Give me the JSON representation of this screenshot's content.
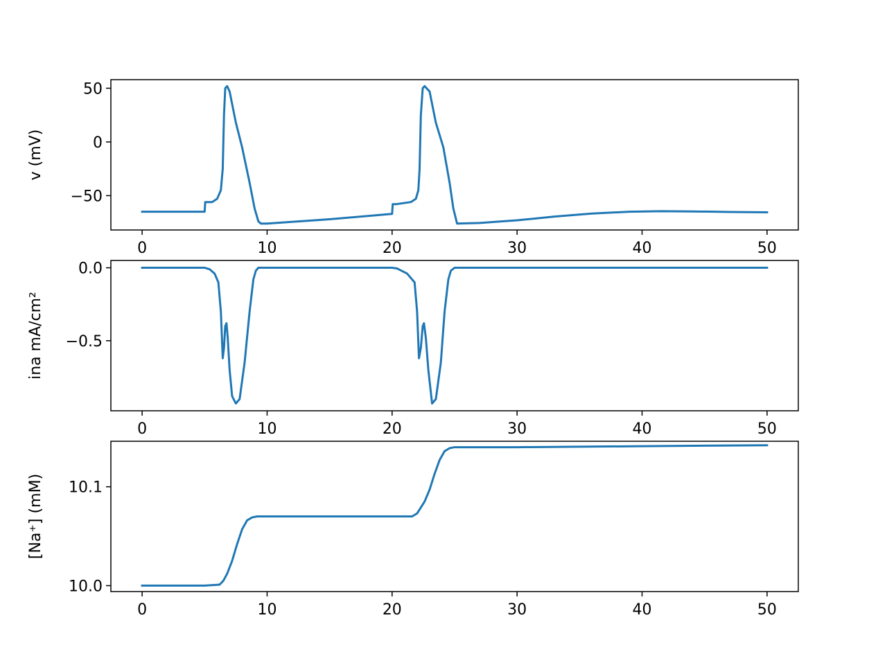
{
  "chart_data": [
    {
      "type": "line",
      "ylabel": "v (mV)",
      "xlim": [
        -2.5,
        52.5
      ],
      "ylim": [
        -82,
        58
      ],
      "xticks": [
        0,
        10,
        20,
        30,
        40,
        50
      ],
      "xtick_labels": [
        "0",
        "10",
        "20",
        "30",
        "40",
        "50"
      ],
      "yticks": [
        -50,
        0,
        50
      ],
      "ytick_labels": [
        "−50",
        "0",
        "50"
      ],
      "grid": false,
      "series_color": "#1f77b4",
      "x": [
        0,
        5,
        5.05,
        5.6,
        6.0,
        6.3,
        6.45,
        6.55,
        6.65,
        6.8,
        7.0,
        7.5,
        8.0,
        8.6,
        9.0,
        9.3,
        9.5,
        10,
        15,
        20,
        20.05,
        20.3,
        21.5,
        21.9,
        22.1,
        22.2,
        22.3,
        22.45,
        22.6,
        23.0,
        23.5,
        24.1,
        24.6,
        24.9,
        25.2,
        27,
        30,
        33,
        36,
        39,
        41.5,
        44,
        47,
        50
      ],
      "y": [
        -65,
        -65,
        -56,
        -56,
        -53,
        -45,
        -25,
        25,
        50,
        52,
        47,
        18,
        -5,
        -38,
        -62,
        -74,
        -76,
        -76,
        -72,
        -67,
        -58,
        -58,
        -56,
        -53,
        -45,
        -25,
        25,
        50,
        52,
        47,
        18,
        -5,
        -38,
        -62,
        -76,
        -75.5,
        -73,
        -69.5,
        -66.7,
        -65,
        -64.5,
        -64.7,
        -65.2,
        -65.5
      ]
    },
    {
      "type": "line",
      "ylabel": "ina mA/cm²",
      "xlim": [
        -2.5,
        52.5
      ],
      "ylim": [
        -0.98,
        0.05
      ],
      "xticks": [
        0,
        10,
        20,
        30,
        40,
        50
      ],
      "xtick_labels": [
        "0",
        "10",
        "20",
        "30",
        "40",
        "50"
      ],
      "yticks": [
        -0.5,
        0.0
      ],
      "ytick_labels": [
        "−0.5",
        "0.0"
      ],
      "grid": false,
      "series_color": "#1f77b4",
      "x": [
        0,
        5,
        5.4,
        5.8,
        6.1,
        6.3,
        6.45,
        6.55,
        6.65,
        6.75,
        6.85,
        7.0,
        7.2,
        7.5,
        7.8,
        8.2,
        8.6,
        8.9,
        9.1,
        9.3,
        10,
        15,
        20,
        20.4,
        21.2,
        21.8,
        22.0,
        22.15,
        22.3,
        22.45,
        22.55,
        22.7,
        22.9,
        23.2,
        23.5,
        23.9,
        24.2,
        24.5,
        24.7,
        25.0,
        30,
        40,
        50
      ],
      "y": [
        0,
        0,
        -0.01,
        -0.04,
        -0.1,
        -0.3,
        -0.62,
        -0.55,
        -0.4,
        -0.38,
        -0.48,
        -0.7,
        -0.88,
        -0.93,
        -0.9,
        -0.65,
        -0.3,
        -0.08,
        -0.02,
        0,
        0,
        0,
        0,
        -0.005,
        -0.04,
        -0.1,
        -0.3,
        -0.62,
        -0.55,
        -0.4,
        -0.38,
        -0.48,
        -0.7,
        -0.93,
        -0.9,
        -0.65,
        -0.3,
        -0.08,
        -0.02,
        0,
        0,
        0,
        0
      ]
    },
    {
      "type": "line",
      "ylabel": "[Na⁺] (mM)",
      "xlim": [
        -2.5,
        52.5
      ],
      "ylim": [
        9.994,
        10.146
      ],
      "xticks": [
        0,
        10,
        20,
        30,
        40,
        50
      ],
      "xtick_labels": [
        "0",
        "10",
        "20",
        "30",
        "40",
        "50"
      ],
      "yticks": [
        10.0,
        10.1
      ],
      "ytick_labels": [
        "10.0",
        "10.1"
      ],
      "grid": false,
      "series_color": "#1f77b4",
      "x": [
        0,
        5,
        6.2,
        6.5,
        6.8,
        7.2,
        7.6,
        8.0,
        8.4,
        8.8,
        9.2,
        12,
        16,
        20,
        21.6,
        22.0,
        22.3,
        22.6,
        23.0,
        23.4,
        23.8,
        24.2,
        24.6,
        25.0,
        30,
        40,
        50
      ],
      "y": [
        10.0,
        10.0,
        10.001,
        10.005,
        10.012,
        10.025,
        10.042,
        10.057,
        10.066,
        10.069,
        10.07,
        10.07,
        10.07,
        10.07,
        10.07,
        10.073,
        10.079,
        10.085,
        10.097,
        10.113,
        10.127,
        10.136,
        10.139,
        10.14,
        10.14,
        10.141,
        10.142
      ]
    }
  ]
}
